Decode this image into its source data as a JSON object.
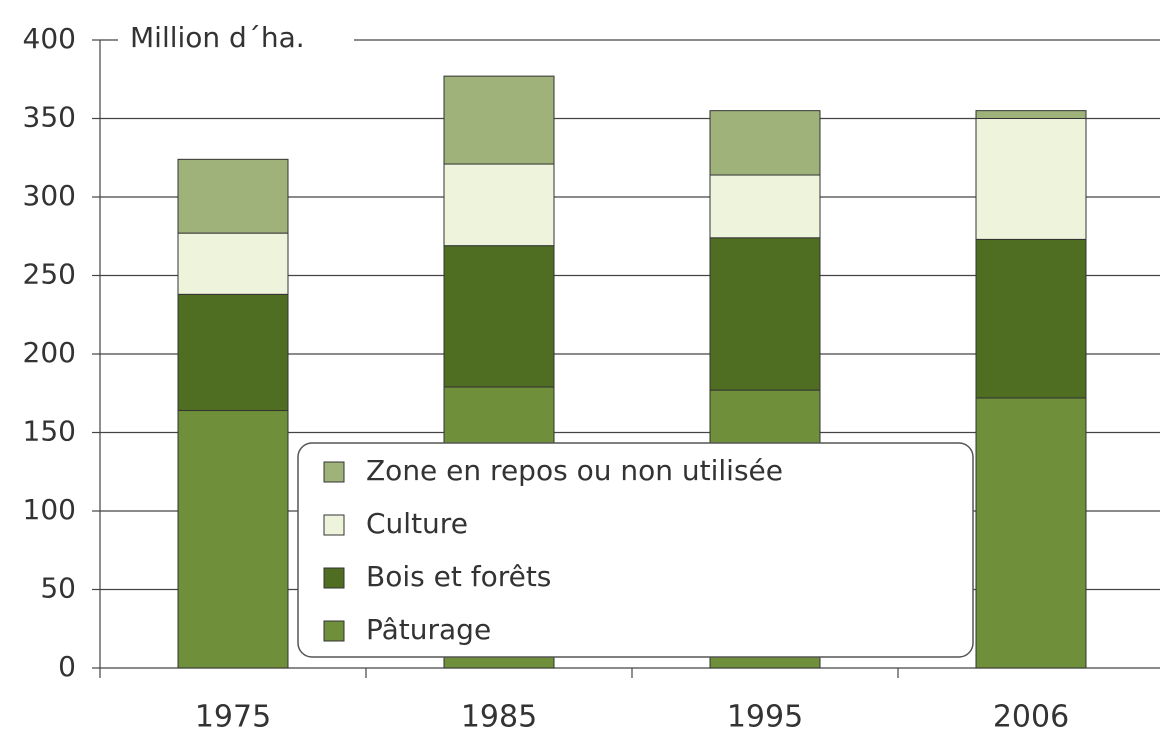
{
  "chart_data": {
    "type": "stacked_bar",
    "y_axis_label": "Million d´ha.",
    "categories": [
      "1975",
      "1985",
      "1995",
      "2006"
    ],
    "series": [
      {
        "name": "Pâturage",
        "color": "#6f8f3b",
        "values": [
          164,
          179,
          177,
          172
        ]
      },
      {
        "name": "Bois et forêts",
        "color": "#4f6e22",
        "values": [
          74,
          90,
          97,
          101
        ]
      },
      {
        "name": "Culture",
        "color": "#eef3dc",
        "values": [
          39,
          52,
          40,
          77
        ]
      },
      {
        "name": "Zone en repos ou non utilisée",
        "color": "#9fb27a",
        "values": [
          47,
          56,
          41,
          5
        ]
      }
    ],
    "ylim": [
      0,
      400
    ],
    "yticks": [
      0,
      50,
      100,
      150,
      200,
      250,
      300,
      350,
      400
    ],
    "grid": true
  }
}
